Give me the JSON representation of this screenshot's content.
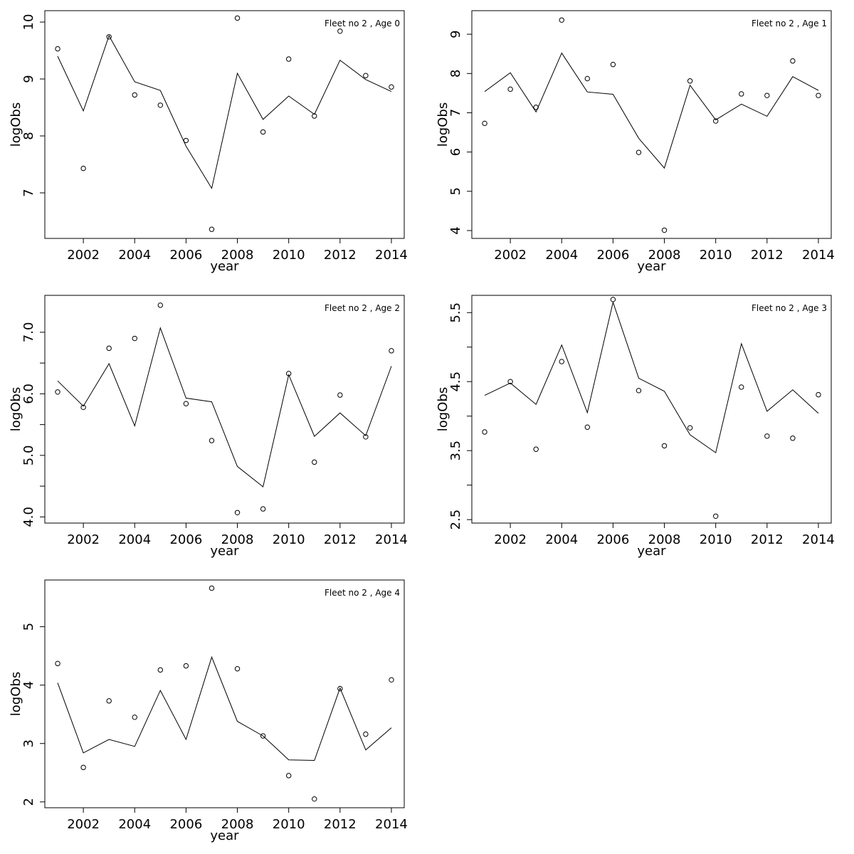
{
  "chart_data": [
    {
      "type": "line",
      "title": "Fleet no 2 , Age 0",
      "xlabel": "year",
      "ylabel": "logObs",
      "xlim": [
        2000.5,
        2014.5
      ],
      "ylim": [
        6.2,
        10.2
      ],
      "xticks": [
        2002,
        2004,
        2006,
        2008,
        2010,
        2012,
        2014
      ],
      "yticks": [
        7,
        8,
        9,
        10
      ],
      "yticks_labeled": [
        7,
        8,
        9,
        10
      ],
      "x": [
        2001,
        2002,
        2003,
        2004,
        2005,
        2006,
        2007,
        2008,
        2009,
        2010,
        2011,
        2012,
        2013,
        2014
      ],
      "series": [
        {
          "type": "line",
          "values": [
            9.4,
            8.44,
            9.76,
            8.95,
            8.8,
            7.82,
            7.08,
            9.1,
            8.29,
            8.7,
            8.38,
            9.33,
            8.99,
            8.78
          ]
        },
        {
          "type": "scatter",
          "values": [
            9.53,
            7.43,
            9.74,
            8.72,
            8.54,
            7.92,
            6.36,
            10.07,
            8.07,
            9.35,
            8.35,
            9.84,
            9.06,
            8.86
          ]
        }
      ]
    },
    {
      "type": "line",
      "title": "Fleet no 2 , Age 1",
      "xlabel": "year",
      "ylabel": "logObs",
      "xlim": [
        2000.5,
        2014.5
      ],
      "ylim": [
        3.8,
        9.6
      ],
      "xticks": [
        2002,
        2004,
        2006,
        2008,
        2010,
        2012,
        2014
      ],
      "yticks": [
        4,
        5,
        6,
        7,
        8,
        9
      ],
      "yticks_labeled": [
        4,
        5,
        6,
        7,
        8,
        9
      ],
      "x": [
        2001,
        2002,
        2003,
        2004,
        2005,
        2006,
        2007,
        2008,
        2009,
        2010,
        2011,
        2012,
        2013,
        2014
      ],
      "series": [
        {
          "type": "line",
          "values": [
            7.54,
            8.02,
            7.02,
            8.52,
            7.53,
            7.47,
            6.35,
            5.59,
            7.7,
            6.82,
            7.22,
            6.91,
            7.92,
            7.57
          ]
        },
        {
          "type": "scatter",
          "values": [
            6.73,
            7.6,
            7.14,
            9.36,
            7.87,
            8.23,
            5.99,
            4.01,
            7.81,
            6.79,
            7.48,
            7.44,
            8.32,
            7.44
          ]
        }
      ]
    },
    {
      "type": "line",
      "title": "Fleet no 2 , Age 2",
      "xlabel": "year",
      "ylabel": "logObs",
      "xlim": [
        2000.5,
        2014.5
      ],
      "ylim": [
        3.9,
        7.6
      ],
      "xticks": [
        2002,
        2004,
        2006,
        2008,
        2010,
        2012,
        2014
      ],
      "yticks": [
        4.0,
        4.5,
        5.0,
        5.5,
        6.0,
        6.5,
        7.0
      ],
      "yticks_labeled": [
        "4.0",
        "5.0",
        "6.0",
        "7.0"
      ],
      "x": [
        2001,
        2002,
        2003,
        2004,
        2005,
        2006,
        2007,
        2008,
        2009,
        2010,
        2011,
        2012,
        2013,
        2014
      ],
      "series": [
        {
          "type": "line",
          "values": [
            6.21,
            5.8,
            6.49,
            5.48,
            7.07,
            5.93,
            5.87,
            4.82,
            4.49,
            6.31,
            5.31,
            5.69,
            5.32,
            6.45
          ]
        },
        {
          "type": "scatter",
          "values": [
            6.03,
            5.78,
            6.74,
            6.9,
            7.44,
            5.84,
            5.24,
            4.07,
            4.13,
            6.33,
            4.89,
            5.98,
            5.3,
            6.7
          ]
        }
      ]
    },
    {
      "type": "line",
      "title": "Fleet no 2 , Age 3",
      "xlabel": "year",
      "ylabel": "logObs",
      "xlim": [
        2000.5,
        2014.5
      ],
      "ylim": [
        2.45,
        5.75
      ],
      "xticks": [
        2002,
        2004,
        2006,
        2008,
        2010,
        2012,
        2014
      ],
      "yticks": [
        2.5,
        3.0,
        3.5,
        4.0,
        4.5,
        5.0,
        5.5
      ],
      "yticks_labeled": [
        "2.5",
        "3.5",
        "4.5",
        "5.5"
      ],
      "x": [
        2001,
        2002,
        2003,
        2004,
        2005,
        2006,
        2007,
        2008,
        2009,
        2010,
        2011,
        2012,
        2013,
        2014
      ],
      "series": [
        {
          "type": "line",
          "values": [
            4.3,
            4.48,
            4.17,
            5.03,
            4.05,
            5.65,
            4.55,
            4.36,
            3.73,
            3.47,
            5.05,
            4.07,
            4.38,
            4.04
          ]
        },
        {
          "type": "scatter",
          "values": [
            3.77,
            4.5,
            3.52,
            4.79,
            3.84,
            5.69,
            4.37,
            3.57,
            3.83,
            2.55,
            4.42,
            3.71,
            3.68,
            4.31
          ]
        }
      ]
    },
    {
      "type": "line",
      "title": "Fleet no 2 , Age 4",
      "xlabel": "year",
      "ylabel": "logObs",
      "xlim": [
        2000.5,
        2014.5
      ],
      "ylim": [
        1.9,
        5.8
      ],
      "xticks": [
        2002,
        2004,
        2006,
        2008,
        2010,
        2012,
        2014
      ],
      "yticks": [
        2,
        3,
        4,
        5
      ],
      "yticks_labeled": [
        2,
        3,
        4,
        5
      ],
      "x": [
        2001,
        2002,
        2003,
        2004,
        2005,
        2006,
        2007,
        2008,
        2009,
        2010,
        2011,
        2012,
        2013,
        2014
      ],
      "series": [
        {
          "type": "line",
          "values": [
            4.04,
            2.84,
            3.07,
            2.95,
            3.91,
            3.07,
            4.48,
            3.38,
            3.13,
            2.72,
            2.71,
            3.95,
            2.89,
            3.27
          ]
        },
        {
          "type": "scatter",
          "values": [
            4.37,
            2.59,
            3.73,
            3.45,
            4.26,
            4.33,
            5.66,
            4.28,
            3.13,
            2.45,
            2.05,
            3.94,
            3.16,
            4.09
          ]
        }
      ]
    }
  ]
}
